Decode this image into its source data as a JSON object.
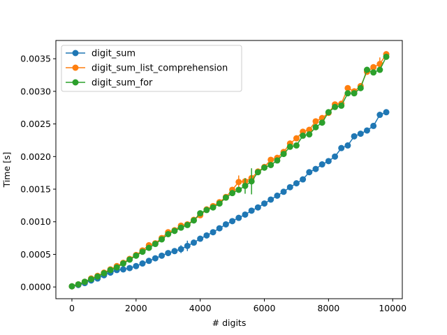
{
  "chart_data": {
    "type": "line",
    "title": "",
    "xlabel": "# digits",
    "ylabel": "Time [s]",
    "xlim": [
      -500,
      10300
    ],
    "ylim": [
      -0.00018,
      0.00378
    ],
    "xticks": [
      0,
      2000,
      4000,
      6000,
      8000,
      10000
    ],
    "xtick_labels": [
      "0",
      "2000",
      "4000",
      "6000",
      "8000",
      "10000"
    ],
    "yticks": [
      0,
      0.0005,
      0.001,
      0.0015,
      0.002,
      0.0025,
      0.003,
      0.0035
    ],
    "ytick_labels": [
      "0.0000",
      "0.0005",
      "0.0010",
      "0.0015",
      "0.0020",
      "0.0025",
      "0.0030",
      "0.0035"
    ],
    "grid": false,
    "legend_position": "top-left",
    "x": [
      0,
      200,
      400,
      600,
      800,
      1000,
      1200,
      1400,
      1600,
      1800,
      2000,
      2200,
      2400,
      2600,
      2800,
      3000,
      3200,
      3400,
      3600,
      3800,
      4000,
      4200,
      4400,
      4600,
      4800,
      5000,
      5200,
      5400,
      5600,
      5800,
      6000,
      6200,
      6400,
      6600,
      6800,
      7000,
      7200,
      7400,
      7600,
      7800,
      8000,
      8200,
      8400,
      8600,
      8800,
      9000,
      9200,
      9400,
      9600,
      9800
    ],
    "series": [
      {
        "name": "digit_sum",
        "color": "#1f77b4",
        "values": [
          1e-05,
          3e-05,
          6e-05,
          0.0001,
          0.00013,
          0.00018,
          0.00022,
          0.00026,
          0.00027,
          0.00029,
          0.00032,
          0.00036,
          0.0004,
          0.00044,
          0.00048,
          0.00052,
          0.00055,
          0.00058,
          0.00063,
          0.00068,
          0.00074,
          0.00079,
          0.00084,
          0.0009,
          0.00096,
          0.00101,
          0.00106,
          0.00111,
          0.00117,
          0.00122,
          0.00128,
          0.00134,
          0.0014,
          0.00146,
          0.00153,
          0.00159,
          0.00165,
          0.00176,
          0.00181,
          0.00188,
          0.00193,
          0.002,
          0.00213,
          0.00217,
          0.00231,
          0.00235,
          0.0024,
          0.00247,
          0.00264,
          0.00268
        ],
        "errors": [
          0,
          0,
          0,
          0,
          0,
          0,
          0,
          0,
          0,
          0,
          0,
          0,
          0,
          0,
          0,
          0,
          0,
          6e-05,
          8e-05,
          0,
          0,
          0,
          0,
          0,
          0,
          0,
          0,
          0,
          0,
          0,
          0,
          0,
          0,
          0,
          0,
          0,
          0,
          0,
          0,
          0,
          0,
          0,
          0,
          0,
          0,
          0,
          0,
          0,
          0,
          0
        ]
      },
      {
        "name": "digit_sum_list_comprehension",
        "color": "#ff7f0e",
        "values": [
          1e-05,
          4e-05,
          8e-05,
          0.00013,
          0.00017,
          0.00022,
          0.00027,
          0.00032,
          0.00037,
          0.00043,
          0.00049,
          0.00056,
          0.00064,
          0.00067,
          0.00075,
          0.00084,
          0.00087,
          0.00094,
          0.00096,
          0.00103,
          0.0011,
          0.00119,
          0.00124,
          0.0013,
          0.00138,
          0.00149,
          0.00161,
          0.00162,
          0.00167,
          0.00177,
          0.00184,
          0.00195,
          0.00198,
          0.00207,
          0.0022,
          0.00228,
          0.00238,
          0.00241,
          0.00254,
          0.00259,
          0.00267,
          0.0028,
          0.00281,
          0.00305,
          0.003,
          0.00308,
          0.0033,
          0.00337,
          0.00342,
          0.00357
        ],
        "errors": [
          0,
          0,
          0,
          0,
          0,
          0,
          0,
          0,
          0,
          0,
          0,
          0,
          0,
          0,
          0,
          0,
          0,
          0,
          0,
          0,
          0,
          0,
          0,
          0,
          0,
          0,
          0.0001,
          0,
          0,
          0,
          0,
          0,
          0,
          0,
          0,
          0,
          0,
          0,
          0,
          0,
          0,
          0,
          0,
          0,
          0,
          0,
          0,
          0,
          0.0001,
          0
        ]
      },
      {
        "name": "digit_sum_for",
        "color": "#2ca02c",
        "values": [
          1e-05,
          4e-05,
          8e-05,
          0.00012,
          0.00016,
          0.00021,
          0.00026,
          0.0003,
          0.00036,
          0.00042,
          0.00048,
          0.00054,
          0.0006,
          0.00066,
          0.00073,
          0.00081,
          0.00086,
          0.00091,
          0.00095,
          0.00102,
          0.00113,
          0.00118,
          0.00122,
          0.00128,
          0.00137,
          0.00144,
          0.00149,
          0.00155,
          0.00162,
          0.00176,
          0.00183,
          0.00187,
          0.00194,
          0.00204,
          0.00215,
          0.00217,
          0.00232,
          0.00234,
          0.00245,
          0.00252,
          0.00268,
          0.00276,
          0.00278,
          0.00297,
          0.00297,
          0.00305,
          0.00333,
          0.00329,
          0.00333,
          0.00353
        ],
        "errors": [
          0,
          0,
          0,
          0,
          0,
          0,
          0,
          0,
          0,
          0,
          0,
          0,
          0,
          0,
          0,
          0,
          0,
          0,
          0,
          0,
          0,
          0,
          0,
          0,
          0,
          0,
          0,
          0.00012,
          0.0002,
          0,
          0,
          0,
          0,
          0,
          0,
          0,
          0,
          0,
          0,
          0,
          0,
          0,
          0,
          0,
          0,
          0,
          0,
          0,
          0,
          0
        ]
      }
    ]
  }
}
